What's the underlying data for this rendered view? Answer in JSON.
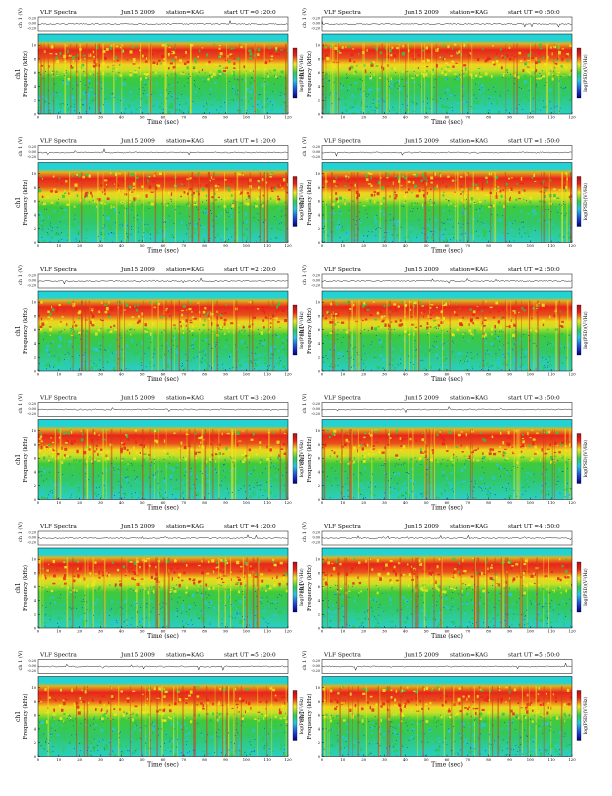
{
  "colors": {
    "spectrum_low": "#1a3fd0",
    "spectrum_mid_low": "#27c7e0",
    "spectrum_mid": "#33c94a",
    "spectrum_mid_high": "#f0e81c",
    "spectrum_high": "#e8251b",
    "band_top": "#23d3d3"
  },
  "chart_data": [
    {
      "type": "heatmap",
      "title": "VLF Spectra",
      "date": "Jun15 2009",
      "station": "station=KAG",
      "start_label": "start UT =0 :20:0",
      "amp_ylabel": "ch 1 (V)",
      "amp_ticks": [
        "0.20",
        "0.00",
        "-0.20"
      ],
      "ylabel": "Frequency (kHz)",
      "channel_label": "ch1",
      "xlabel": "Time (sec)",
      "x_ticks": [
        "0",
        "10",
        "20",
        "30",
        "40",
        "50",
        "60",
        "70",
        "80",
        "90",
        "100",
        "110",
        "120"
      ],
      "y_ticks": [
        "0",
        "2",
        "4",
        "6",
        "8",
        "10"
      ],
      "colorbar_label": "log(PSD)(V²/Hz)",
      "xlim": [
        0,
        120
      ],
      "ylim": [
        0,
        10
      ]
    },
    {
      "type": "heatmap",
      "title": "VLF Spectra",
      "date": "Jun15 2009",
      "station": "station=KAG",
      "start_label": "start UT =0 :50:0",
      "amp_ylabel": "ch 1 (V)",
      "amp_ticks": [
        "0.20",
        "0.00",
        "-0.20"
      ],
      "ylabel": "Frequency (kHz)",
      "channel_label": "ch1",
      "xlabel": "Time (sec)",
      "x_ticks": [
        "0",
        "10",
        "20",
        "30",
        "40",
        "50",
        "60",
        "70",
        "80",
        "90",
        "100",
        "110",
        "120"
      ],
      "y_ticks": [
        "0",
        "2",
        "4",
        "6",
        "8",
        "10"
      ],
      "colorbar_label": "log(PSD)(V²/Hz)",
      "xlim": [
        0,
        120
      ],
      "ylim": [
        0,
        10
      ]
    },
    {
      "type": "heatmap",
      "title": "VLF Spectra",
      "date": "Jun15 2009",
      "station": "station=KAG",
      "start_label": "start UT =1 :20:0",
      "amp_ylabel": "ch 1 (V)",
      "amp_ticks": [
        "0.20",
        "0.00",
        "-0.20"
      ],
      "ylabel": "Frequency (kHz)",
      "channel_label": "ch1",
      "xlabel": "Time (sec)",
      "x_ticks": [
        "0",
        "10",
        "20",
        "30",
        "40",
        "50",
        "60",
        "70",
        "80",
        "90",
        "100",
        "110",
        "120"
      ],
      "y_ticks": [
        "0",
        "2",
        "4",
        "6",
        "8",
        "10"
      ],
      "colorbar_label": "log(PSD)(V²/Hz)",
      "xlim": [
        0,
        120
      ],
      "ylim": [
        0,
        10
      ]
    },
    {
      "type": "heatmap",
      "title": "VLF Spectra",
      "date": "Jun15 2009",
      "station": "station=KAG",
      "start_label": "start UT =1 :50:0",
      "amp_ylabel": "ch 1 (V)",
      "amp_ticks": [
        "0.20",
        "0.00",
        "-0.20"
      ],
      "ylabel": "Frequency (kHz)",
      "channel_label": "ch1",
      "xlabel": "Time (sec)",
      "x_ticks": [
        "0",
        "10",
        "20",
        "30",
        "40",
        "50",
        "60",
        "70",
        "80",
        "90",
        "100",
        "110",
        "120"
      ],
      "y_ticks": [
        "0",
        "2",
        "4",
        "6",
        "8",
        "10"
      ],
      "colorbar_label": "log(PSD)(V²/Hz)",
      "xlim": [
        0,
        120
      ],
      "ylim": [
        0,
        10
      ]
    },
    {
      "type": "heatmap",
      "title": "VLF Spectra",
      "date": "Jun15 2009",
      "station": "station=KAG",
      "start_label": "start UT =2 :20:0",
      "amp_ylabel": "ch 1 (V)",
      "amp_ticks": [
        "0.20",
        "0.00",
        "-0.20"
      ],
      "ylabel": "Frequency (kHz)",
      "channel_label": "ch1",
      "xlabel": "Time (sec)",
      "x_ticks": [
        "0",
        "10",
        "20",
        "30",
        "40",
        "50",
        "60",
        "70",
        "80",
        "90",
        "100",
        "110",
        "120"
      ],
      "y_ticks": [
        "0",
        "2",
        "4",
        "6",
        "8",
        "10"
      ],
      "colorbar_label": "log(PSD)(V²/Hz)",
      "xlim": [
        0,
        120
      ],
      "ylim": [
        0,
        10
      ]
    },
    {
      "type": "heatmap",
      "title": "VLF Spectra",
      "date": "Jun15 2009",
      "station": "station=KAG",
      "start_label": "start UT =2 :50:0",
      "amp_ylabel": "ch 1 (V)",
      "amp_ticks": [
        "0.20",
        "0.00",
        "-0.20"
      ],
      "ylabel": "Frequency (kHz)",
      "channel_label": "ch1",
      "xlabel": "Time (sec)",
      "x_ticks": [
        "0",
        "10",
        "20",
        "30",
        "40",
        "50",
        "60",
        "70",
        "80",
        "90",
        "100",
        "110",
        "120"
      ],
      "y_ticks": [
        "0",
        "2",
        "4",
        "6",
        "8",
        "10"
      ],
      "colorbar_label": "log(PSD)(V²/Hz)",
      "xlim": [
        0,
        120
      ],
      "ylim": [
        0,
        10
      ]
    },
    {
      "type": "heatmap",
      "title": "VLF Spectra",
      "date": "Jun15 2009",
      "station": "station=KAG",
      "start_label": "start UT =3 :20:0",
      "amp_ylabel": "ch 1 (V)",
      "amp_ticks": [
        "0.20",
        "0.00",
        "-0.20"
      ],
      "ylabel": "Frequency (kHz)",
      "channel_label": "ch1",
      "xlabel": "Time (sec)",
      "x_ticks": [
        "0",
        "10",
        "20",
        "30",
        "40",
        "50",
        "60",
        "70",
        "80",
        "90",
        "100",
        "110",
        "120"
      ],
      "y_ticks": [
        "0",
        "2",
        "4",
        "6",
        "8",
        "10"
      ],
      "colorbar_label": "log(PSD)(V²/Hz)",
      "xlim": [
        0,
        120
      ],
      "ylim": [
        0,
        10
      ]
    },
    {
      "type": "heatmap",
      "title": "VLF Spectra",
      "date": "Jun15 2009",
      "station": "station=KAG",
      "start_label": "start UT =3 :50:0",
      "amp_ylabel": "ch 1 (V)",
      "amp_ticks": [
        "0.20",
        "0.00",
        "-0.20"
      ],
      "ylabel": "Frequency (kHz)",
      "channel_label": "ch1",
      "xlabel": "Time (sec)",
      "x_ticks": [
        "0",
        "10",
        "20",
        "30",
        "40",
        "50",
        "60",
        "70",
        "80",
        "90",
        "100",
        "110",
        "120"
      ],
      "y_ticks": [
        "0",
        "2",
        "4",
        "6",
        "8",
        "10"
      ],
      "colorbar_label": "log(PSD)(V²/Hz)",
      "xlim": [
        0,
        120
      ],
      "ylim": [
        0,
        10
      ]
    },
    {
      "type": "heatmap",
      "title": "VLF Spectra",
      "date": "Jun15 2009",
      "station": "station=KAG",
      "start_label": "start UT =4 :20:0",
      "amp_ylabel": "ch 1 (V)",
      "amp_ticks": [
        "0.20",
        "0.00",
        "-0.20"
      ],
      "ylabel": "Frequency (kHz)",
      "channel_label": "ch1",
      "xlabel": "Time (sec)",
      "x_ticks": [
        "0",
        "10",
        "20",
        "30",
        "40",
        "50",
        "60",
        "70",
        "80",
        "90",
        "100",
        "110",
        "120"
      ],
      "y_ticks": [
        "0",
        "2",
        "4",
        "6",
        "8",
        "10"
      ],
      "colorbar_label": "log(PSD)(V²/Hz)",
      "xlim": [
        0,
        120
      ],
      "ylim": [
        0,
        10
      ]
    },
    {
      "type": "heatmap",
      "title": "VLF Spectra",
      "date": "Jun15 2009",
      "station": "station=KAG",
      "start_label": "start UT =4 :50:0",
      "amp_ylabel": "ch 1 (V)",
      "amp_ticks": [
        "0.20",
        "0.00",
        "-0.20"
      ],
      "ylabel": "Frequency (kHz)",
      "channel_label": "ch1",
      "xlabel": "Time (sec)",
      "x_ticks": [
        "0",
        "10",
        "20",
        "30",
        "40",
        "50",
        "60",
        "70",
        "80",
        "90",
        "100",
        "110",
        "120"
      ],
      "y_ticks": [
        "0",
        "2",
        "4",
        "6",
        "8",
        "10"
      ],
      "colorbar_label": "log(PSD)(V²/Hz)",
      "xlim": [
        0,
        120
      ],
      "ylim": [
        0,
        10
      ]
    },
    {
      "type": "heatmap",
      "title": "VLF Spectra",
      "date": "Jun15 2009",
      "station": "station=KAG",
      "start_label": "start UT =5 :20:0",
      "amp_ylabel": "ch 1 (V)",
      "amp_ticks": [
        "0.20",
        "0.00",
        "-0.20"
      ],
      "ylabel": "Frequency (kHz)",
      "channel_label": "ch1",
      "xlabel": "Time (sec)",
      "x_ticks": [
        "0",
        "10",
        "20",
        "30",
        "40",
        "50",
        "60",
        "70",
        "80",
        "90",
        "100",
        "110",
        "120"
      ],
      "y_ticks": [
        "0",
        "2",
        "4",
        "6",
        "8",
        "10"
      ],
      "colorbar_label": "log(PSD)(V²/Hz)",
      "xlim": [
        0,
        120
      ],
      "ylim": [
        0,
        10
      ]
    },
    {
      "type": "heatmap",
      "title": "VLF Spectra",
      "date": "Jun15 2009",
      "station": "station=KAG",
      "start_label": "start UT =5 :50:0",
      "amp_ylabel": "ch 1 (V)",
      "amp_ticks": [
        "0.20",
        "0.00",
        "-0.20"
      ],
      "ylabel": "Frequency (kHz)",
      "channel_label": "ch1",
      "xlabel": "Time (sec)",
      "x_ticks": [
        "0",
        "10",
        "20",
        "30",
        "40",
        "50",
        "60",
        "70",
        "80",
        "90",
        "100",
        "110",
        "120"
      ],
      "y_ticks": [
        "0",
        "2",
        "4",
        "6",
        "8",
        "10"
      ],
      "colorbar_label": "log(PSD)(V²/Hz)",
      "xlim": [
        0,
        120
      ],
      "ylim": [
        0,
        10
      ]
    }
  ]
}
